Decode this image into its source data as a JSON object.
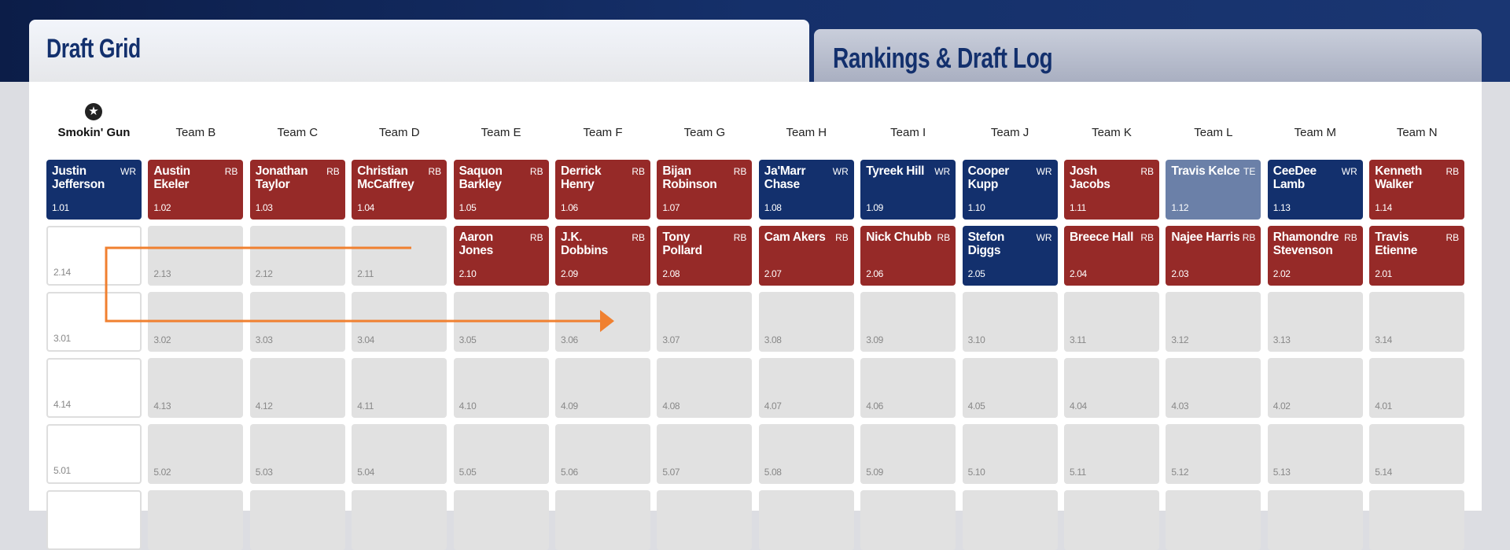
{
  "tabs": {
    "draft_grid": "Draft Grid",
    "rankings": "Rankings & Draft Log"
  },
  "colors": {
    "WR": "#13306d",
    "RB": "#962a28",
    "TE": "#6b80a8",
    "arrow": "#f08030"
  },
  "user_icon": "star-icon",
  "teams": [
    "Smokin' Gun",
    "Team B",
    "Team C",
    "Team D",
    "Team E",
    "Team F",
    "Team G",
    "Team H",
    "Team I",
    "Team J",
    "Team K",
    "Team L",
    "Team M",
    "Team N"
  ],
  "rows": [
    [
      {
        "pick": "1.01",
        "player": "Justin Jefferson",
        "pos": "WR"
      },
      {
        "pick": "1.02",
        "player": "Austin Ekeler",
        "pos": "RB"
      },
      {
        "pick": "1.03",
        "player": "Jonathan Taylor",
        "pos": "RB"
      },
      {
        "pick": "1.04",
        "player": "Christian McCaffrey",
        "pos": "RB"
      },
      {
        "pick": "1.05",
        "player": "Saquon Barkley",
        "pos": "RB"
      },
      {
        "pick": "1.06",
        "player": "Derrick Henry",
        "pos": "RB"
      },
      {
        "pick": "1.07",
        "player": "Bijan Robinson",
        "pos": "RB"
      },
      {
        "pick": "1.08",
        "player": "Ja'Marr Chase",
        "pos": "WR"
      },
      {
        "pick": "1.09",
        "player": "Tyreek Hill",
        "pos": "WR"
      },
      {
        "pick": "1.10",
        "player": "Cooper Kupp",
        "pos": "WR"
      },
      {
        "pick": "1.11",
        "player": "Josh Jacobs",
        "pos": "RB"
      },
      {
        "pick": "1.12",
        "player": "Travis Kelce",
        "pos": "TE"
      },
      {
        "pick": "1.13",
        "player": "CeeDee Lamb",
        "pos": "WR"
      },
      {
        "pick": "1.14",
        "player": "Kenneth Walker",
        "pos": "RB"
      }
    ],
    [
      {
        "pick": "2.14"
      },
      {
        "pick": "2.13"
      },
      {
        "pick": "2.12"
      },
      {
        "pick": "2.11"
      },
      {
        "pick": "2.10",
        "player": "Aaron Jones",
        "pos": "RB"
      },
      {
        "pick": "2.09",
        "player": "J.K. Dobbins",
        "pos": "RB"
      },
      {
        "pick": "2.08",
        "player": "Tony Pollard",
        "pos": "RB"
      },
      {
        "pick": "2.07",
        "player": "Cam Akers",
        "pos": "RB"
      },
      {
        "pick": "2.06",
        "player": "Nick Chubb",
        "pos": "RB"
      },
      {
        "pick": "2.05",
        "player": "Stefon Diggs",
        "pos": "WR"
      },
      {
        "pick": "2.04",
        "player": "Breece Hall",
        "pos": "RB"
      },
      {
        "pick": "2.03",
        "player": "Najee Harris",
        "pos": "RB"
      },
      {
        "pick": "2.02",
        "player": "Rhamondre Stevenson",
        "pos": "RB"
      },
      {
        "pick": "2.01",
        "player": "Travis Etienne",
        "pos": "RB"
      }
    ],
    [
      {
        "pick": "3.01"
      },
      {
        "pick": "3.02"
      },
      {
        "pick": "3.03"
      },
      {
        "pick": "3.04"
      },
      {
        "pick": "3.05"
      },
      {
        "pick": "3.06"
      },
      {
        "pick": "3.07"
      },
      {
        "pick": "3.08"
      },
      {
        "pick": "3.09"
      },
      {
        "pick": "3.10"
      },
      {
        "pick": "3.11"
      },
      {
        "pick": "3.12"
      },
      {
        "pick": "3.13"
      },
      {
        "pick": "3.14"
      }
    ],
    [
      {
        "pick": "4.14"
      },
      {
        "pick": "4.13"
      },
      {
        "pick": "4.12"
      },
      {
        "pick": "4.11"
      },
      {
        "pick": "4.10"
      },
      {
        "pick": "4.09"
      },
      {
        "pick": "4.08"
      },
      {
        "pick": "4.07"
      },
      {
        "pick": "4.06"
      },
      {
        "pick": "4.05"
      },
      {
        "pick": "4.04"
      },
      {
        "pick": "4.03"
      },
      {
        "pick": "4.02"
      },
      {
        "pick": "4.01"
      }
    ],
    [
      {
        "pick": "5.01"
      },
      {
        "pick": "5.02"
      },
      {
        "pick": "5.03"
      },
      {
        "pick": "5.04"
      },
      {
        "pick": "5.05"
      },
      {
        "pick": "5.06"
      },
      {
        "pick": "5.07"
      },
      {
        "pick": "5.08"
      },
      {
        "pick": "5.09"
      },
      {
        "pick": "5.10"
      },
      {
        "pick": "5.11"
      },
      {
        "pick": "5.12"
      },
      {
        "pick": "5.13"
      },
      {
        "pick": "5.14"
      }
    ],
    [
      {},
      {},
      {},
      {},
      {},
      {},
      {},
      {},
      {},
      {},
      {},
      {},
      {},
      {}
    ]
  ]
}
